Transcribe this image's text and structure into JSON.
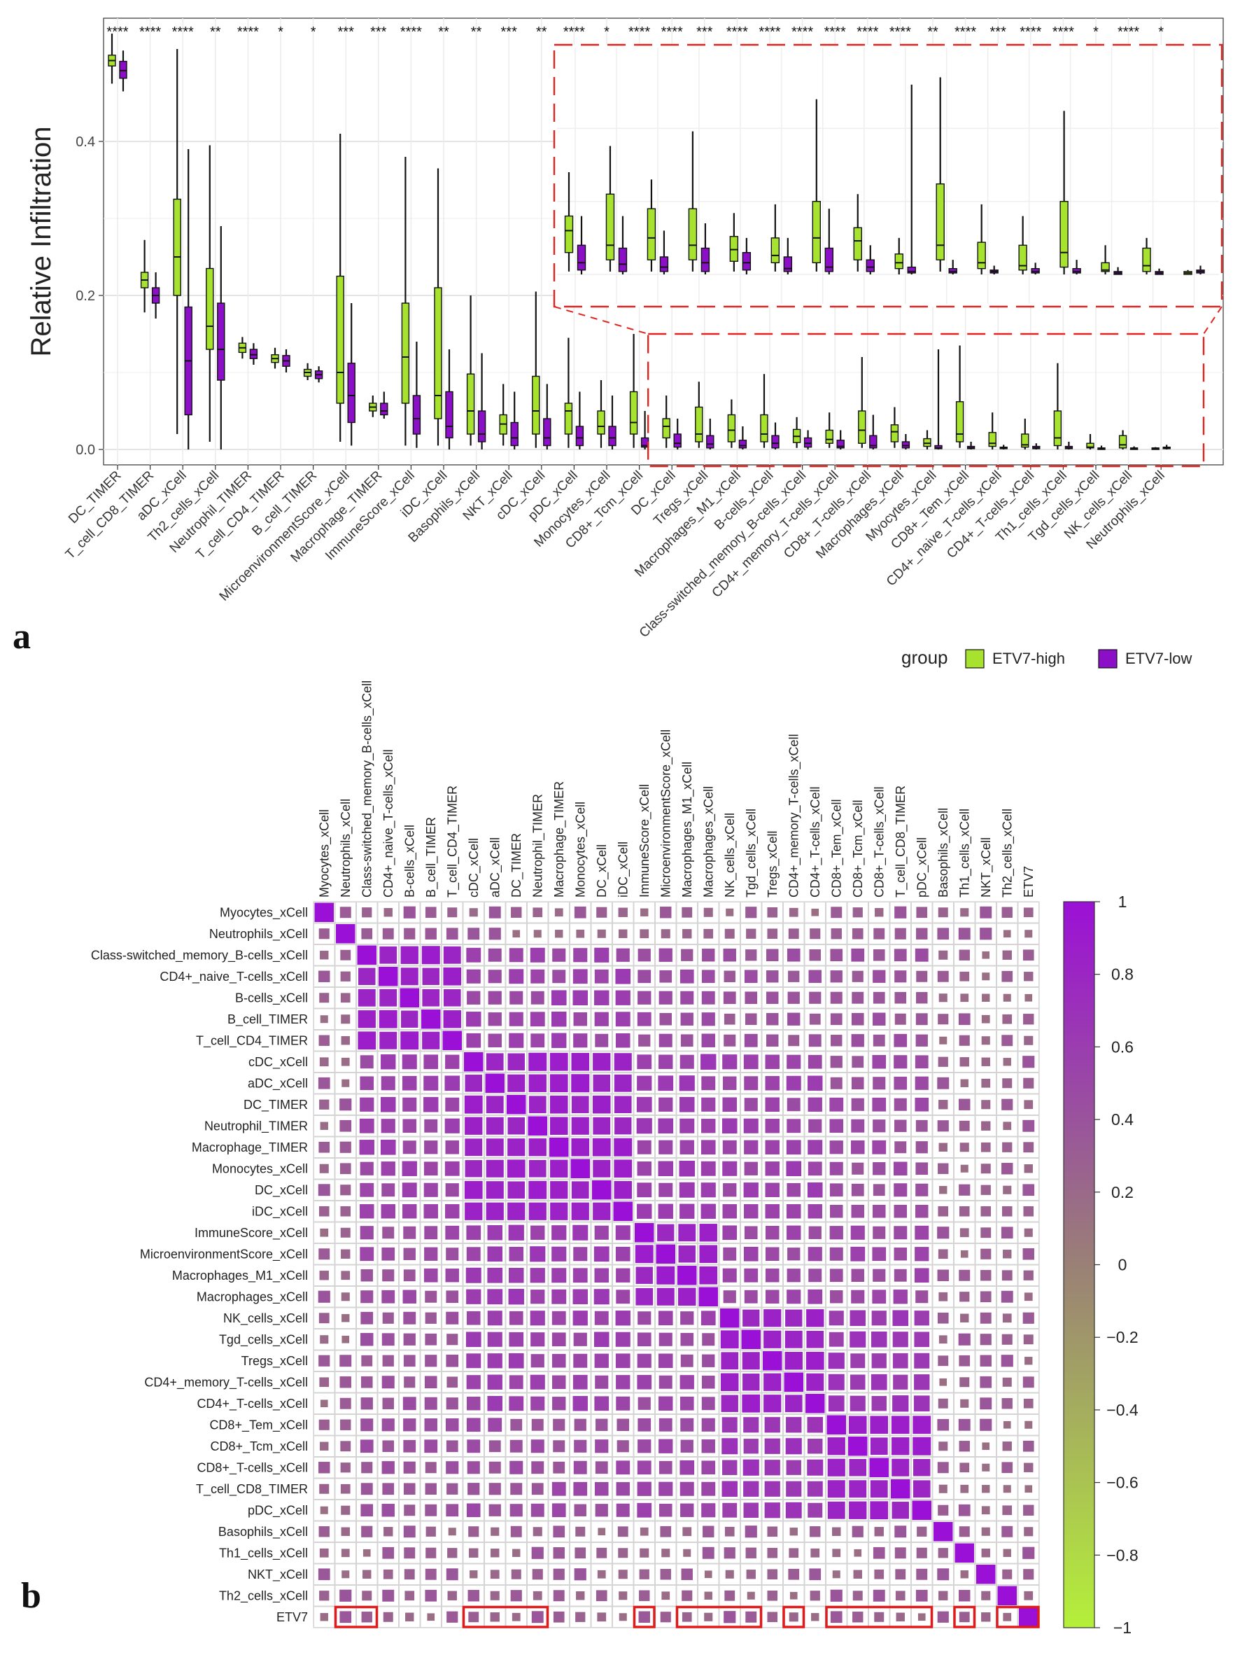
{
  "panel_a_letter": "a",
  "panel_b_letter": "b",
  "chart_data": [
    {
      "type": "box",
      "ylabel": "Relative Infiltration",
      "xlabel": "",
      "ylim": [
        -0.02,
        0.56
      ],
      "yticks": [
        0.0,
        0.2,
        0.4
      ],
      "ytick_labels": [
        "0.0",
        "0.2",
        "0.4"
      ],
      "grid": true,
      "legend_title": "group",
      "legend_placement": "bottom-right",
      "series": [
        {
          "name": "ETV7-high",
          "color": "#a6e22e"
        },
        {
          "name": "ETV7-low",
          "color": "#8b0fc7"
        }
      ],
      "categories": [
        "DC_TIMER",
        "T_cell_CD8_TIMER",
        "aDC_xCell",
        "Th2_cells_xCell",
        "Neutrophil_TIMER",
        "T_cell_CD4_TIMER",
        "B_cell_TIMER",
        "MicroenvironmentScore_xCell",
        "Macrophage_TIMER",
        "ImmuneScore_xCell",
        "iDC_xCell",
        "Basophils_xCell",
        "NKT_xCell",
        "cDC_xCell",
        "pDC_xCell",
        "Monocytes_xCell",
        "CD8+_Tcm_xCell",
        "DC_xCell",
        "Tregs_xCell",
        "Macrophages_M1_xCell",
        "B-cells_xCell",
        "Class-switched_memory_B-cells_xCell",
        "CD4+_memory_T-cells_xCell",
        "CD8+_T-cells_xCell",
        "Macrophages_xCell",
        "Myocytes_xCell",
        "CD8+_Tem_xCell",
        "CD4+_naive_T-cells_xCell",
        "CD4+_T-cells_xCell",
        "Th1_cells_xCell",
        "Tgd_cells_xCell",
        "NK_cells_xCell",
        "Neutrophils_xCell"
      ],
      "significance": [
        "****",
        "****",
        "****",
        "**",
        "****",
        "*",
        "*",
        "***",
        "***",
        "****",
        "**",
        "**",
        "***",
        "**",
        "****",
        "*",
        "****",
        "****",
        "***",
        "****",
        "****",
        "****",
        "****",
        "****",
        "****",
        "**",
        "****",
        "***",
        "****",
        "****",
        "*",
        "****",
        "*"
      ],
      "boxes_high": [
        [
          0.475,
          0.498,
          0.505,
          0.512,
          0.54
        ],
        [
          0.178,
          0.21,
          0.22,
          0.23,
          0.272
        ],
        [
          0.02,
          0.2,
          0.25,
          0.325,
          0.52
        ],
        [
          0.01,
          0.13,
          0.16,
          0.235,
          0.395
        ],
        [
          0.118,
          0.126,
          0.132,
          0.138,
          0.146
        ],
        [
          0.105,
          0.113,
          0.118,
          0.123,
          0.132
        ],
        [
          0.09,
          0.095,
          0.1,
          0.104,
          0.112
        ],
        [
          0.01,
          0.06,
          0.1,
          0.225,
          0.41
        ],
        [
          0.042,
          0.05,
          0.055,
          0.06,
          0.07
        ],
        [
          0.005,
          0.06,
          0.12,
          0.19,
          0.38
        ],
        [
          0.005,
          0.04,
          0.07,
          0.21,
          0.365
        ],
        [
          0.005,
          0.02,
          0.05,
          0.098,
          0.2
        ],
        [
          0.005,
          0.02,
          0.033,
          0.045,
          0.085
        ],
        [
          0.002,
          0.02,
          0.05,
          0.095,
          0.205
        ],
        [
          0.002,
          0.02,
          0.05,
          0.06,
          0.145
        ],
        [
          0.002,
          0.02,
          0.03,
          0.05,
          0.09
        ],
        [
          0.002,
          0.02,
          0.035,
          0.075,
          0.15
        ],
        [
          0.002,
          0.015,
          0.03,
          0.04,
          0.07
        ],
        [
          0.002,
          0.01,
          0.02,
          0.055,
          0.088
        ],
        [
          0.002,
          0.01,
          0.025,
          0.045,
          0.065
        ],
        [
          0.002,
          0.01,
          0.02,
          0.045,
          0.098
        ],
        [
          0.002,
          0.009,
          0.017,
          0.026,
          0.042
        ],
        [
          0.002,
          0.008,
          0.013,
          0.025,
          0.048
        ],
        [
          0.002,
          0.008,
          0.025,
          0.05,
          0.12
        ],
        [
          0.002,
          0.01,
          0.023,
          0.032,
          0.055
        ],
        [
          0.0,
          0.004,
          0.008,
          0.014,
          0.025
        ],
        [
          0.002,
          0.01,
          0.02,
          0.062,
          0.135
        ],
        [
          0.0,
          0.004,
          0.008,
          0.022,
          0.048
        ],
        [
          0.0,
          0.003,
          0.006,
          0.02,
          0.04
        ],
        [
          0.0,
          0.005,
          0.015,
          0.05,
          0.112
        ],
        [
          0.0,
          0.002,
          0.003,
          0.008,
          0.02
        ],
        [
          0.0,
          0.002,
          0.006,
          0.018,
          0.025
        ],
        [
          0.0,
          0.0,
          0.001,
          0.002,
          0.003
        ]
      ],
      "boxes_low": [
        [
          0.465,
          0.482,
          0.492,
          0.504,
          0.518
        ],
        [
          0.17,
          0.19,
          0.2,
          0.21,
          0.23
        ],
        [
          0.0,
          0.045,
          0.115,
          0.185,
          0.39
        ],
        [
          0.0,
          0.09,
          0.13,
          0.19,
          0.29
        ],
        [
          0.11,
          0.118,
          0.123,
          0.13,
          0.138
        ],
        [
          0.1,
          0.108,
          0.115,
          0.122,
          0.13
        ],
        [
          0.087,
          0.092,
          0.097,
          0.102,
          0.108
        ],
        [
          0.005,
          0.035,
          0.07,
          0.112,
          0.19
        ],
        [
          0.04,
          0.045,
          0.05,
          0.06,
          0.075
        ],
        [
          0.002,
          0.02,
          0.04,
          0.07,
          0.14
        ],
        [
          0.0,
          0.015,
          0.03,
          0.075,
          0.13
        ],
        [
          0.0,
          0.01,
          0.02,
          0.05,
          0.125
        ],
        [
          0.0,
          0.005,
          0.015,
          0.035,
          0.075
        ],
        [
          0.0,
          0.005,
          0.015,
          0.04,
          0.085
        ],
        [
          0.0,
          0.005,
          0.015,
          0.03,
          0.075
        ],
        [
          0.0,
          0.005,
          0.015,
          0.03,
          0.07
        ],
        [
          0.0,
          0.003,
          0.005,
          0.015,
          0.05
        ],
        [
          0.0,
          0.003,
          0.008,
          0.02,
          0.04
        ],
        [
          0.0,
          0.002,
          0.007,
          0.018,
          0.04
        ],
        [
          0.0,
          0.002,
          0.005,
          0.012,
          0.03
        ],
        [
          0.0,
          0.002,
          0.008,
          0.018,
          0.035
        ],
        [
          0.0,
          0.003,
          0.008,
          0.015,
          0.025
        ],
        [
          0.0,
          0.002,
          0.004,
          0.012,
          0.025
        ],
        [
          0.0,
          0.002,
          0.005,
          0.018,
          0.045
        ],
        [
          0.0,
          0.002,
          0.005,
          0.01,
          0.02
        ],
        [
          0.0,
          0.001,
          0.002,
          0.005,
          0.13
        ],
        [
          0.0,
          0.001,
          0.002,
          0.004,
          0.01
        ],
        [
          0.0,
          0.001,
          0.002,
          0.003,
          0.006
        ],
        [
          0.0,
          0.001,
          0.002,
          0.004,
          0.008
        ],
        [
          0.0,
          0.001,
          0.002,
          0.004,
          0.01
        ],
        [
          0.0,
          0.0,
          0.001,
          0.002,
          0.005
        ],
        [
          0.0,
          0.0,
          0.001,
          0.002,
          0.004
        ],
        [
          0.0,
          0.001,
          0.002,
          0.003,
          0.006
        ]
      ]
    },
    {
      "type": "heatmap",
      "xlabel": "",
      "ylabel": "",
      "labels": [
        "Myocytes_xCell",
        "Neutrophils_xCell",
        "Class-switched_memory_B-cells_xCell",
        "CD4+_naive_T-cells_xCell",
        "B-cells_xCell",
        "B_cell_TIMER",
        "T_cell_CD4_TIMER",
        "cDC_xCell",
        "aDC_xCell",
        "DC_TIMER",
        "Neutrophil_TIMER",
        "Macrophage_TIMER",
        "Monocytes_xCell",
        "DC_xCell",
        "iDC_xCell",
        "ImmuneScore_xCell",
        "MicroenvironmentScore_xCell",
        "Macrophages_M1_xCell",
        "Macrophages_xCell",
        "NK_cells_xCell",
        "Tgd_cells_xCell",
        "Tregs_xCell",
        "CD4+_memory_T-cells_xCell",
        "CD4+_T-cells_xCell",
        "CD8+_Tem_xCell",
        "CD8+_Tcm_xCell",
        "CD8+_T-cells_xCell",
        "T_cell_CD8_TIMER",
        "pDC_xCell",
        "Basophils_xCell",
        "Th1_cells_xCell",
        "NKT_xCell",
        "Th2_cells_xCell",
        "ETV7"
      ],
      "clusters": [
        [
          2,
          6
        ],
        [
          7,
          14
        ],
        [
          15,
          18
        ],
        [
          19,
          23
        ],
        [
          24,
          28
        ]
      ],
      "inter_block_values": [
        [
          0,
          1,
          0.55
        ],
        [
          1,
          2,
          0.6
        ],
        [
          1,
          3,
          0.55
        ],
        [
          2,
          3,
          0.5
        ],
        [
          3,
          4,
          0.65
        ],
        [
          2,
          4,
          0.5
        ],
        [
          1,
          4,
          0.45
        ],
        [
          0,
          2,
          0.45
        ],
        [
          0,
          3,
          0.4
        ],
        [
          0,
          4,
          0.4
        ]
      ],
      "legend_range": [
        -1,
        1
      ],
      "legend_ticks": [
        1,
        0.8,
        0.6,
        0.4,
        0.2,
        0,
        -0.2,
        -0.4,
        -0.6,
        -0.8,
        -1
      ],
      "legend_tick_labels": [
        "1",
        "0.8",
        "0.6",
        "0.4",
        "0.2",
        "0",
        "−0.2",
        "−0.4",
        "−0.6",
        "−0.8",
        "−1"
      ],
      "color_low": "#b5f03a",
      "color_mid": "#9a8076",
      "color_high": "#9b10d6",
      "highlighted_etv7_cells": [
        [
          1,
          2
        ],
        [
          7,
          10
        ],
        [
          15,
          15
        ],
        [
          17,
          20
        ],
        [
          22,
          22
        ],
        [
          24,
          28
        ],
        [
          30,
          30
        ],
        [
          32,
          33
        ]
      ]
    }
  ]
}
